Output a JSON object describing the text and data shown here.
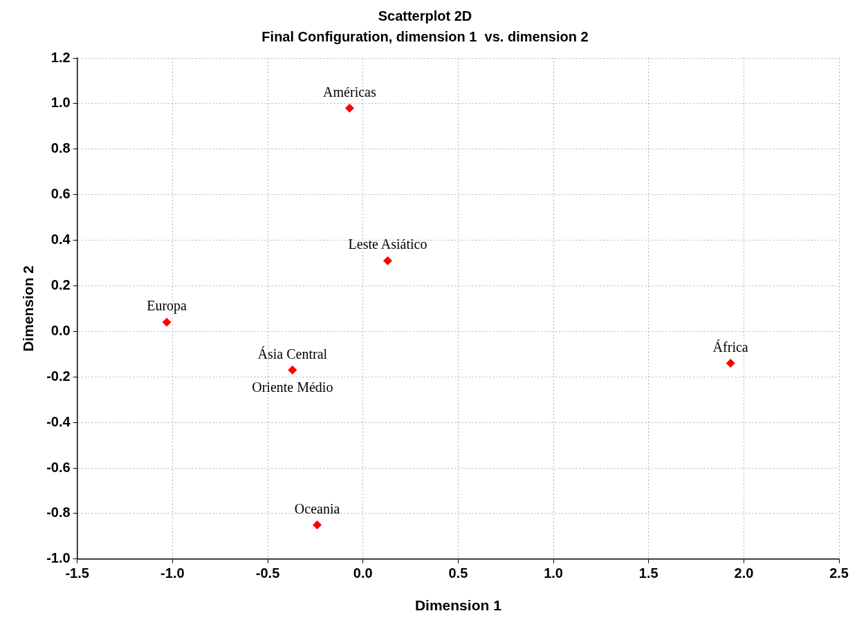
{
  "chart_data": {
    "type": "scatter",
    "title": "Scatterplot 2D",
    "subtitle": "Final Configuration, dimension 1  vs. dimension 2",
    "xlabel": "Dimension 1",
    "ylabel": "Dimension 2",
    "x": [
      -0.07,
      0.13,
      -1.03,
      -0.37,
      1.93,
      -0.24
    ],
    "series": [
      {
        "color": "#ff0000",
        "values": [
          0.98,
          0.31,
          0.04,
          -0.17,
          -0.14,
          -0.85
        ]
      }
    ],
    "marker": "diamond",
    "grid": true,
    "legend": false,
    "xlim": [
      -1.5,
      2.5
    ],
    "xticks": [
      {
        "value": -1.5,
        "label": "-1.5"
      },
      {
        "value": -1,
        "label": "-1.0"
      },
      {
        "value": -0.5,
        "label": "-0.5"
      },
      {
        "value": 0,
        "label": "0.0"
      },
      {
        "value": 0.5,
        "label": "0.5"
      },
      {
        "value": 1,
        "label": "1.0"
      },
      {
        "value": 1.5,
        "label": "1.5"
      },
      {
        "value": 2,
        "label": "2.0"
      },
      {
        "value": 2.5,
        "label": "2.5"
      }
    ],
    "ylim": [
      -1,
      1.2
    ],
    "yticks": [
      {
        "value": -1,
        "label": "-1.0"
      },
      {
        "value": -0.8,
        "label": "-0.8"
      },
      {
        "value": -0.6,
        "label": "-0.6"
      },
      {
        "value": -0.4,
        "label": "-0.4"
      },
      {
        "value": -0.2,
        "label": "-0.2"
      },
      {
        "value": 0,
        "label": "0.0"
      },
      {
        "value": 0.2,
        "label": "0.2"
      },
      {
        "value": 0.4,
        "label": "0.4"
      },
      {
        "value": 0.6,
        "label": "0.6"
      },
      {
        "value": 0.8,
        "label": "0.8"
      },
      {
        "value": 1,
        "label": "1.0"
      },
      {
        "value": 1.2,
        "label": "1.2"
      }
    ],
    "annotations": [
      {
        "text": "Américas",
        "x": -0.07,
        "y": 0.98
      },
      {
        "text": "Leste Asiático",
        "x": 0.13,
        "y": 0.31
      },
      {
        "text": "Europa",
        "x": -1.03,
        "y": 0.04
      },
      {
        "text": "Ásia Central",
        "x": -0.37,
        "y": -0.17
      },
      {
        "text": "Oriente Médio",
        "x": -0.37,
        "y": -0.17
      },
      {
        "text": "África",
        "x": 1.93,
        "y": -0.14
      },
      {
        "text": "Oceania",
        "x": -0.24,
        "y": -0.85
      }
    ]
  }
}
